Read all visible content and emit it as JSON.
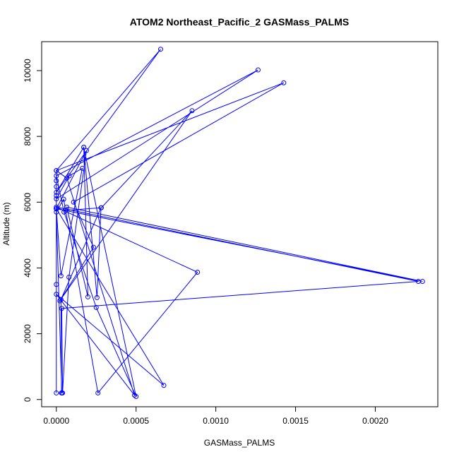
{
  "chart_data": {
    "type": "line",
    "title": "ATOM2 Northeast_Pacific_2 GASMass_PALMS",
    "xlabel": "GASMass_PALMS",
    "ylabel": "Altitude (m)",
    "xlim": [
      -9.2e-05,
      0.002392
    ],
    "ylim": [
      -220,
      10880
    ],
    "x_ticks": [
      0.0,
      0.0005,
      0.001,
      0.0015,
      0.002
    ],
    "x_tick_labels": [
      "0.0000",
      "0.0005",
      "0.0010",
      "0.0015",
      "0.0020"
    ],
    "y_ticks": [
      0,
      2000,
      4000,
      6000,
      8000,
      10000
    ],
    "y_tick_labels": [
      "0",
      "2000",
      "4000",
      "6000",
      "8000",
      "10000"
    ],
    "grid": false,
    "series": [
      {
        "color": "#0000ff",
        "marker": "open-circle",
        "points": [
          [
            0.0,
            200
          ],
          [
            0.0,
            3500
          ],
          [
            0.0,
            5800
          ],
          [
            0.0,
            6200
          ],
          [
            0.0,
            6470
          ],
          [
            0.0,
            6650
          ],
          [
            0.0,
            6960
          ],
          [
            0.000654,
            10650
          ],
          [
            0.0,
            6300
          ],
          [
            0.000172,
            7670
          ],
          [
            0.000198,
            3120
          ],
          [
            6.5e-05,
            5850
          ],
          [
            0.002296,
            3590
          ],
          [
            0.0,
            5800
          ],
          [
            5.9e-05,
            5750
          ],
          [
            0.000282,
            5830
          ],
          [
            0.000851,
            8780
          ],
          [
            2.2e-05,
            3000
          ],
          [
            0.000233,
            4630
          ],
          [
            0.000108,
            6000
          ],
          [
            0.001426,
            9630
          ],
          [
            0.0,
            6960
          ],
          [
            6.6e-05,
            6730
          ],
          [
            0.00049,
            130
          ],
          [
            0.0,
            3200
          ],
          [
            0.000674,
            430
          ],
          [
            0.0,
            5800
          ],
          [
            2.9e-05,
            3760
          ],
          [
            0.000163,
            7030
          ],
          [
            8.1e-05,
            6800
          ],
          [
            0.0,
            6100
          ],
          [
            0.001265,
            10020
          ],
          [
            0.0,
            6800
          ],
          [
            4.8e-05,
            5700
          ],
          [
            0.00025,
            2800
          ],
          [
            0.0005,
            90
          ],
          [
            0.000172,
            7670
          ],
          [
            0.000255,
            3100
          ],
          [
            0.00028,
            5830
          ],
          [
            2.9e-05,
            3040
          ],
          [
            3.2e-05,
            200
          ],
          [
            3.4e-05,
            200
          ],
          [
            0.0,
            5700
          ],
          [
            4.6e-05,
            6090
          ],
          [
            0.000261,
            200
          ],
          [
            0.000885,
            3870
          ],
          [
            0.0,
            5850
          ],
          [
            0.00227,
            3590
          ],
          [
            3.4e-05,
            2770
          ],
          [
            3.9e-05,
            200
          ],
          [
            7.9e-05,
            3720
          ],
          [
            0.000189,
            7570
          ],
          [
            0.0,
            5800
          ]
        ]
      }
    ]
  }
}
